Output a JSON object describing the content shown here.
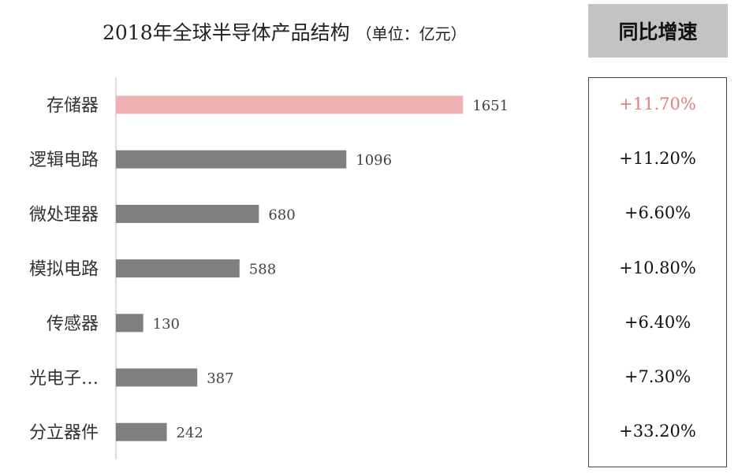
{
  "chart_data": {
    "type": "bar",
    "orientation": "horizontal",
    "title": "2018年全球半导体产品结构",
    "unit": "（单位：亿元）",
    "categories": [
      "存储器",
      "逻辑电路",
      "微处理器",
      "模拟电路",
      "传感器",
      "光电子…",
      "分立器件"
    ],
    "values": [
      1651,
      1096,
      680,
      588,
      130,
      387,
      242
    ],
    "xlim": [
      0,
      2400
    ],
    "grid": false,
    "colors": {
      "highlight": "#efb1b2",
      "default": "#7f7f7f"
    },
    "highlight_index": 0
  },
  "growth": {
    "header": "同比增速",
    "values": [
      "+11.70%",
      "+11.20%",
      "+6.60%",
      "+10.80%",
      "+6.40%",
      "+7.30%",
      "+33.20%"
    ],
    "highlight_color": "#e08080"
  }
}
